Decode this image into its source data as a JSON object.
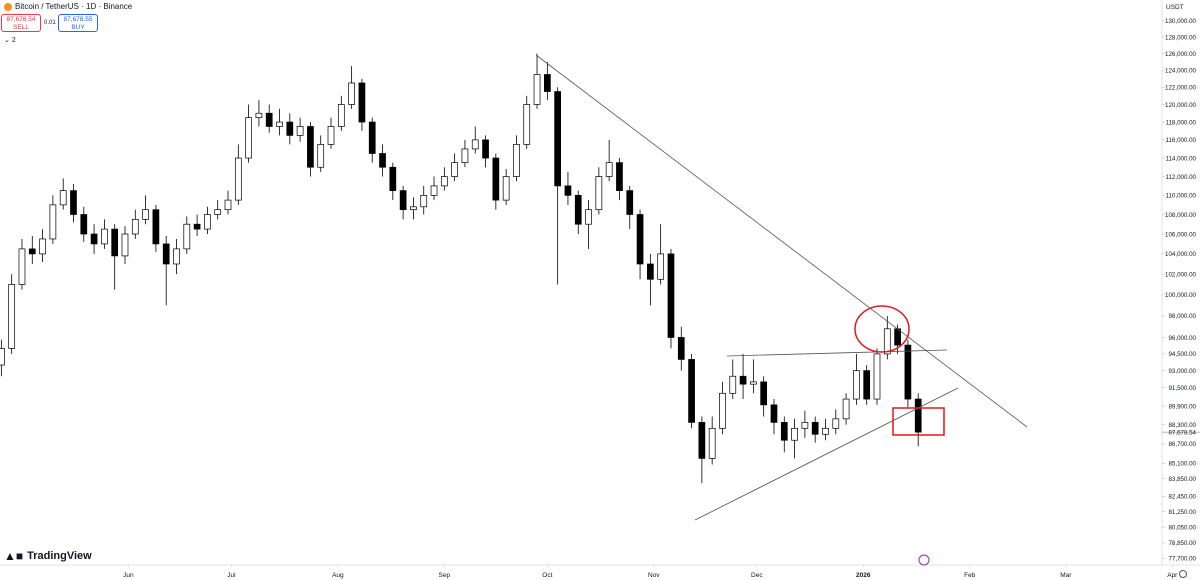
{
  "header": {
    "symbol": "Bitcoin / TetherUS · 1D · Binance",
    "sell_price": "87,678.54",
    "sell_label": "SELL",
    "spread": "0.01",
    "buy_price": "87,678.55",
    "buy_label": "BUY",
    "indicator_count": "2",
    "brand": "TradingView"
  },
  "chart_data": {
    "type": "candlestick",
    "log_scale": true,
    "y_unit": "USDT",
    "up_color": "#ffffff",
    "down_color": "#000000",
    "wick_color": "#000000",
    "xlim": [
      -6.4,
      332
    ],
    "ylim": [
      77200,
      132000
    ],
    "xticks": [
      {
        "value": 31,
        "label": "Jun"
      },
      {
        "value": 61,
        "label": "Jul"
      },
      {
        "value": 92,
        "label": "Aug"
      },
      {
        "value": 123,
        "label": "Sep"
      },
      {
        "value": 153,
        "label": "Oct"
      },
      {
        "value": 184,
        "label": "Nov"
      },
      {
        "value": 214,
        "label": "Dec"
      },
      {
        "value": 245,
        "label": "2026"
      },
      {
        "value": 276,
        "label": "Feb"
      },
      {
        "value": 304,
        "label": "Mar"
      },
      {
        "value": 335,
        "label": "Apr"
      }
    ],
    "yticks": [
      {
        "value": 130000,
        "label": "130,000.00"
      },
      {
        "value": 128000,
        "label": "128,000.00"
      },
      {
        "value": 126000,
        "label": "126,000.00"
      },
      {
        "value": 124000,
        "label": "124,000.00"
      },
      {
        "value": 122000,
        "label": "122,000.00"
      },
      {
        "value": 120000,
        "label": "120,000.00"
      },
      {
        "value": 118000,
        "label": "118,000.00"
      },
      {
        "value": 116000,
        "label": "116,000.00"
      },
      {
        "value": 114000,
        "label": "114,000.00"
      },
      {
        "value": 112000,
        "label": "112,000.00"
      },
      {
        "value": 110000,
        "label": "110,000.00"
      },
      {
        "value": 108000,
        "label": "108,000.00"
      },
      {
        "value": 106000,
        "label": "106,000.00"
      },
      {
        "value": 104000,
        "label": "104,000.00"
      },
      {
        "value": 102000,
        "label": "102,000.00"
      },
      {
        "value": 100000,
        "label": "100,000.00"
      },
      {
        "value": 98000,
        "label": "98,000.00"
      },
      {
        "value": 96000,
        "label": "96,000.00"
      },
      {
        "value": 94500,
        "label": "94,500.00"
      },
      {
        "value": 93000,
        "label": "93,000.00"
      },
      {
        "value": 91500,
        "label": "91,500.00"
      },
      {
        "value": 89900,
        "label": "89,900.00"
      },
      {
        "value": 88300,
        "label": "88,300.00"
      },
      {
        "value": 86700,
        "label": "86,700.00"
      },
      {
        "value": 85100,
        "label": "85,100.00"
      },
      {
        "value": 83850,
        "label": "83,850.00"
      },
      {
        "value": 82450,
        "label": "82,450.00"
      },
      {
        "value": 81250,
        "label": "81,250.00"
      },
      {
        "value": 80050,
        "label": "80,050.00"
      },
      {
        "value": 78850,
        "label": "78,850.00"
      },
      {
        "value": 77700,
        "label": "77,700.00"
      }
    ],
    "last_price": 87678.54,
    "last_price_label": "87,678.54",
    "x": [
      -6,
      -3,
      0,
      3,
      6,
      9,
      12,
      15,
      18,
      21,
      24,
      27,
      30,
      33,
      36,
      39,
      42,
      45,
      48,
      51,
      54,
      57,
      60,
      63,
      66,
      69,
      72,
      75,
      78,
      81,
      84,
      87,
      90,
      93,
      96,
      99,
      102,
      105,
      108,
      111,
      114,
      117,
      120,
      123,
      126,
      129,
      132,
      135,
      138,
      141,
      144,
      147,
      150,
      153,
      156,
      159,
      162,
      165,
      168,
      171,
      174,
      177,
      180,
      183,
      186,
      189,
      192,
      195,
      198,
      201,
      204,
      207,
      210,
      213,
      216,
      219,
      222,
      225,
      228,
      231,
      234,
      237,
      240,
      243,
      246,
      249,
      252,
      255,
      258,
      261
    ],
    "open": [
      93500,
      95000,
      101000,
      104500,
      104000,
      105500,
      109000,
      110500,
      108000,
      106000,
      105000,
      106500,
      103800,
      106000,
      107500,
      108500,
      105000,
      103000,
      104500,
      107000,
      106500,
      108000,
      108500,
      109500,
      114000,
      118500,
      119000,
      117500,
      118000,
      116500,
      117500,
      113000,
      115500,
      117500,
      120000,
      122500,
      118000,
      114500,
      113000,
      110500,
      108500,
      108800,
      110000,
      111000,
      112000,
      113500,
      115000,
      116000,
      114000,
      109500,
      112000,
      115500,
      120000,
      123500,
      121500,
      111000,
      110000,
      107000,
      108500,
      112000,
      113500,
      110500,
      108000,
      103000,
      101500,
      104000,
      96000,
      94000,
      88500,
      85500,
      88000,
      91000,
      92500,
      91800,
      92000,
      90000,
      88500,
      87000,
      88000,
      88500,
      87500,
      88000,
      88800,
      90500,
      93000,
      90500,
      94500,
      96800,
      95300,
      90500
    ],
    "high": [
      95800,
      102000,
      105500,
      105800,
      106500,
      110000,
      111800,
      111200,
      108800,
      107000,
      107500,
      107000,
      106800,
      108500,
      110000,
      109000,
      105800,
      105500,
      107800,
      108000,
      108800,
      109500,
      110500,
      115500,
      120000,
      120500,
      120000,
      119500,
      119000,
      118500,
      118000,
      116500,
      118500,
      121000,
      124500,
      123000,
      118500,
      115500,
      113500,
      111000,
      109800,
      111000,
      112000,
      113000,
      114500,
      116000,
      117500,
      116500,
      114500,
      112800,
      116500,
      121000,
      126000,
      125000,
      122000,
      112500,
      110500,
      109500,
      113000,
      116000,
      114000,
      111000,
      108500,
      104000,
      107000,
      104500,
      97000,
      94500,
      89000,
      89000,
      92000,
      94000,
      94500,
      94000,
      92500,
      90500,
      89000,
      88800,
      89500,
      89000,
      88800,
      89600,
      91000,
      94500,
      93500,
      95000,
      98000,
      97200,
      95800,
      91000
    ],
    "low": [
      92500,
      94500,
      100500,
      103000,
      103200,
      105000,
      108500,
      107200,
      105200,
      104000,
      104500,
      100500,
      103000,
      105500,
      107000,
      104200,
      99000,
      102000,
      104000,
      105800,
      106000,
      107500,
      108000,
      109000,
      113500,
      117500,
      116800,
      116500,
      115500,
      115800,
      112000,
      112500,
      115000,
      117000,
      119500,
      117000,
      113500,
      112000,
      109500,
      107500,
      107500,
      108000,
      109500,
      110500,
      111500,
      113000,
      114500,
      113000,
      108500,
      109000,
      111500,
      115000,
      119500,
      120500,
      101000,
      109000,
      106000,
      104500,
      108000,
      111500,
      109500,
      106500,
      101500,
      99000,
      101000,
      95000,
      93000,
      88000,
      83500,
      85000,
      87500,
      90500,
      90500,
      91000,
      89000,
      87500,
      86000,
      85500,
      87200,
      86800,
      87000,
      87500,
      88300,
      90000,
      90000,
      90000,
      94000,
      94500,
      89800,
      86500
    ],
    "close": [
      95000,
      101000,
      104500,
      104000,
      105500,
      109000,
      110500,
      108000,
      106000,
      105000,
      106500,
      103800,
      106000,
      107500,
      108500,
      105000,
      103000,
      104500,
      107000,
      106500,
      108000,
      108500,
      109500,
      114000,
      118500,
      119000,
      117500,
      118000,
      116500,
      117500,
      113000,
      115500,
      117500,
      120000,
      122500,
      118000,
      114500,
      113000,
      110500,
      108500,
      108800,
      110000,
      111000,
      112000,
      113500,
      115000,
      116000,
      114000,
      109500,
      112000,
      115500,
      120000,
      123500,
      121500,
      111000,
      110000,
      107000,
      108500,
      112000,
      113500,
      110500,
      108000,
      103000,
      101500,
      104000,
      96000,
      94000,
      88500,
      85500,
      88000,
      91000,
      92500,
      91800,
      92000,
      90000,
      88500,
      87000,
      88000,
      88500,
      87500,
      88000,
      88800,
      90500,
      93000,
      90500,
      94500,
      96800,
      95300,
      90500,
      87678.54
    ]
  }
}
